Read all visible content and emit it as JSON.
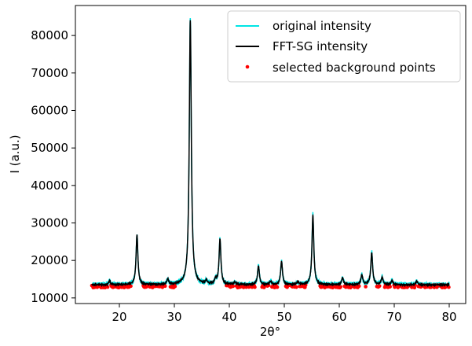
{
  "chart_data": {
    "type": "line",
    "title": "",
    "xlabel": "2θ°",
    "ylabel": "I (a.u.)",
    "xlim": [
      12,
      83
    ],
    "ylim": [
      8500,
      88000
    ],
    "xticks": [
      20,
      30,
      40,
      50,
      60,
      70,
      80
    ],
    "yticks": [
      10000,
      20000,
      30000,
      40000,
      50000,
      60000,
      70000,
      80000
    ],
    "grid": false,
    "legend_position": "top-right",
    "baseline": 13500,
    "peaks": [
      {
        "x": 18.2,
        "height": 1000
      },
      {
        "x": 23.2,
        "height": 13300
      },
      {
        "x": 28.8,
        "height": 1400
      },
      {
        "x": 32.9,
        "height": 70500
      },
      {
        "x": 35.8,
        "height": 900
      },
      {
        "x": 37.5,
        "height": 1300
      },
      {
        "x": 38.3,
        "height": 12000
      },
      {
        "x": 41.0,
        "height": 700
      },
      {
        "x": 45.3,
        "height": 5000
      },
      {
        "x": 47.5,
        "height": 900
      },
      {
        "x": 49.5,
        "height": 6200
      },
      {
        "x": 52.5,
        "height": 700
      },
      {
        "x": 55.2,
        "height": 18500
      },
      {
        "x": 60.6,
        "height": 1800
      },
      {
        "x": 64.1,
        "height": 2600
      },
      {
        "x": 65.9,
        "height": 8500
      },
      {
        "x": 67.8,
        "height": 1900
      },
      {
        "x": 69.6,
        "height": 1100
      },
      {
        "x": 74.1,
        "height": 1000
      }
    ],
    "x_range": [
      15,
      80
    ],
    "series": [
      {
        "name": "original intensity",
        "type": "line",
        "color": "#00e5e5"
      },
      {
        "name": "FFT-SG intensity",
        "type": "line",
        "color": "#000000"
      },
      {
        "name": "selected background points",
        "type": "scatter",
        "color": "#ff0000"
      }
    ]
  }
}
